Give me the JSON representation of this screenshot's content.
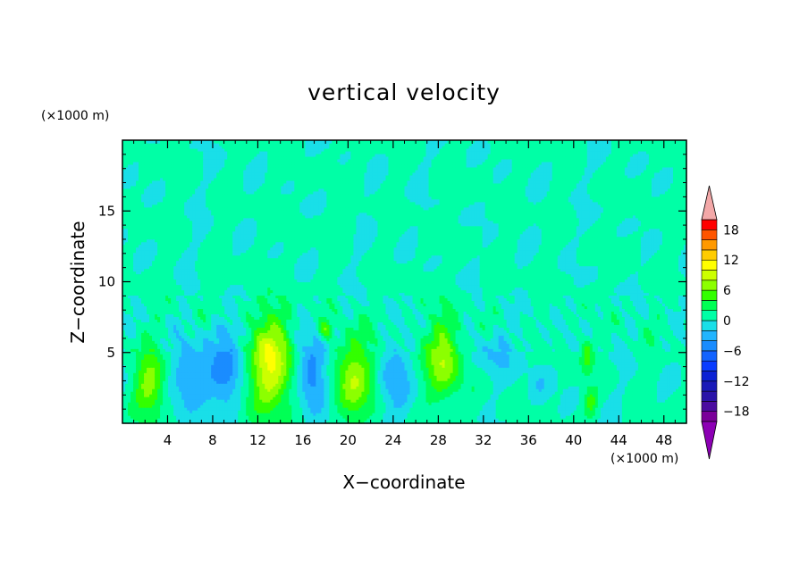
{
  "chart_data": {
    "type": "heatmap",
    "title": "vertical velocity",
    "xlabel": "X−coordinate",
    "ylabel": "Z−coordinate",
    "x_unit": "(×1000 m)",
    "y_unit": "(×1000 m)",
    "xlim": [
      0,
      50
    ],
    "ylim": [
      0,
      20
    ],
    "x_ticks": [
      4,
      8,
      12,
      16,
      20,
      24,
      28,
      32,
      36,
      40,
      44,
      48
    ],
    "y_ticks": [
      5,
      10,
      15
    ],
    "grid": false,
    "colorbar": {
      "position": "right",
      "range": [
        -20,
        20
      ],
      "step": 2,
      "extend": "both",
      "tick_labels": [
        {
          "value": 18,
          "label": "18"
        },
        {
          "value": 12,
          "label": "12"
        },
        {
          "value": 6,
          "label": "6"
        },
        {
          "value": 0,
          "label": "0"
        },
        {
          "value": -6,
          "label": "−6"
        },
        {
          "value": -12,
          "label": "−12"
        },
        {
          "value": -18,
          "label": "−18"
        }
      ],
      "colors": [
        "#7a0099",
        "#4b0ca0",
        "#2a13a8",
        "#1a1ab8",
        "#0c22d4",
        "#0a3cff",
        "#1263ff",
        "#1a8cff",
        "#22b5ff",
        "#19dfe8",
        "#00ffa6",
        "#00ff55",
        "#33ff00",
        "#8cff00",
        "#ccff00",
        "#ffff00",
        "#ffcc00",
        "#ff9900",
        "#ff5500",
        "#ff0000"
      ],
      "over_color": "#f3a8a8",
      "under_color": "#8c00b4"
    },
    "features": [
      {
        "x": 2.5,
        "z": 2.8,
        "sx": 1.4,
        "sz": 2.3,
        "amp": 6.5
      },
      {
        "x": 6.0,
        "z": 3.2,
        "sx": 1.6,
        "sz": 2.5,
        "amp": -4.5
      },
      {
        "x": 9.0,
        "z": 3.8,
        "sx": 1.5,
        "sz": 2.6,
        "amp": -5.5
      },
      {
        "x": 13.2,
        "z": 4.2,
        "sx": 1.9,
        "sz": 3.4,
        "amp": 10.0
      },
      {
        "x": 16.8,
        "z": 3.6,
        "sx": 1.3,
        "sz": 2.8,
        "amp": -6.5
      },
      {
        "x": 18.0,
        "z": 6.6,
        "sx": 0.6,
        "sz": 0.7,
        "amp": 5.0
      },
      {
        "x": 20.5,
        "z": 3.2,
        "sx": 1.8,
        "sz": 2.9,
        "amp": 7.0
      },
      {
        "x": 24.2,
        "z": 3.0,
        "sx": 1.4,
        "sz": 2.5,
        "amp": -4.0
      },
      {
        "x": 28.5,
        "z": 4.5,
        "sx": 1.6,
        "sz": 2.8,
        "amp": 7.5
      },
      {
        "x": 33.0,
        "z": 5.0,
        "sx": 2.2,
        "sz": 1.6,
        "amp": -2.5
      },
      {
        "x": 37.0,
        "z": 2.8,
        "sx": 1.0,
        "sz": 1.5,
        "amp": -2.0
      },
      {
        "x": 41.2,
        "z": 4.8,
        "sx": 0.6,
        "sz": 1.2,
        "amp": 4.0
      },
      {
        "x": 41.5,
        "z": 1.5,
        "sx": 0.6,
        "sz": 1.0,
        "amp": 4.0
      },
      {
        "x": 10.0,
        "z": 6.5,
        "sx": 2.0,
        "sz": 0.6,
        "amp": -1.5
      }
    ]
  }
}
